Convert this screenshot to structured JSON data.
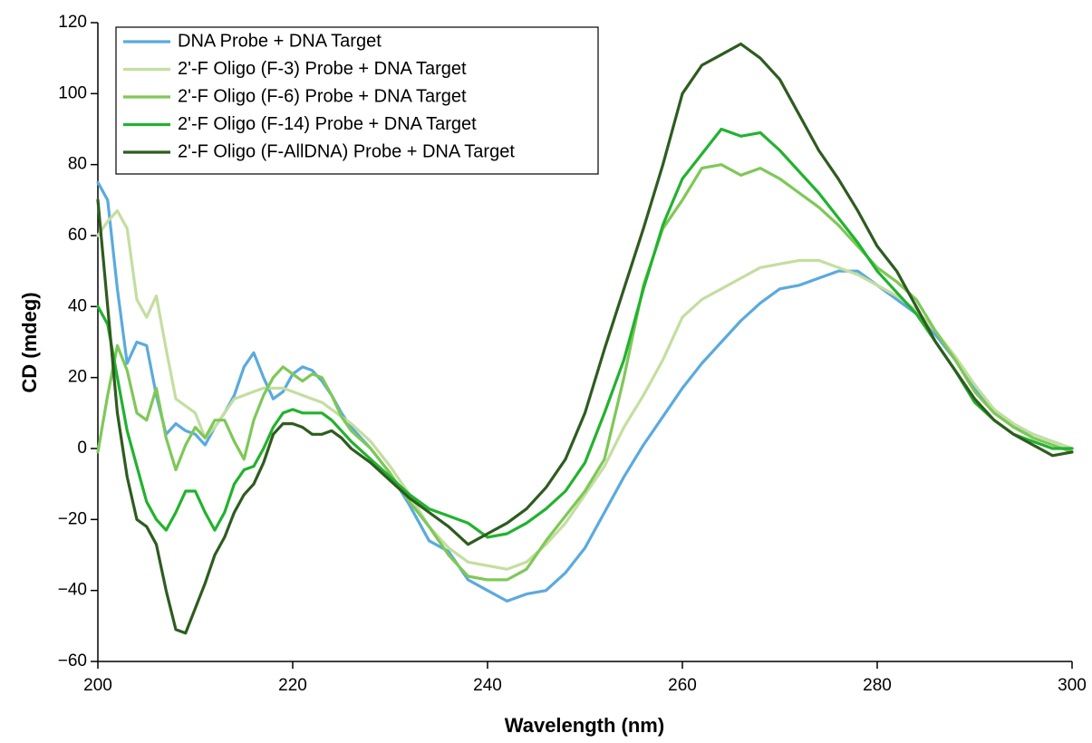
{
  "chart_data": {
    "type": "line",
    "xlabel": "Wavelength (nm)",
    "ylabel": "CD (mdeg)",
    "x": [
      200,
      201,
      202,
      203,
      204,
      205,
      206,
      207,
      208,
      209,
      210,
      211,
      212,
      213,
      214,
      215,
      216,
      217,
      218,
      219,
      220,
      221,
      222,
      223,
      224,
      225,
      226,
      228,
      230,
      232,
      234,
      236,
      238,
      240,
      242,
      244,
      246,
      248,
      250,
      252,
      254,
      256,
      258,
      260,
      262,
      264,
      266,
      268,
      270,
      272,
      274,
      276,
      278,
      280,
      282,
      284,
      286,
      288,
      290,
      292,
      294,
      296,
      298,
      300
    ],
    "xlim": [
      200,
      300
    ],
    "xticks": [
      200,
      220,
      240,
      260,
      280,
      300
    ],
    "ylim": [
      -60,
      120
    ],
    "yticks": [
      {
        "value": -60,
        "label": "−60"
      },
      {
        "value": -40,
        "label": "−40"
      },
      {
        "value": -20,
        "label": "−20"
      },
      0,
      20,
      40,
      60,
      80,
      100,
      120
    ],
    "legend": "upper left",
    "series": [
      {
        "name": "DNA Probe + DNA Target",
        "color": "#5aaade",
        "values": [
          75,
          70,
          45,
          24,
          30,
          29,
          15,
          4,
          7,
          5,
          4,
          1,
          6,
          10,
          15,
          23,
          27,
          20,
          14,
          16,
          21,
          23,
          22,
          19,
          15,
          10,
          6,
          0,
          -7,
          -16,
          -26,
          -29,
          -37,
          -40,
          -43,
          -41,
          -40,
          -35,
          -28,
          -18,
          -8,
          1,
          9,
          17,
          24,
          30,
          36,
          41,
          45,
          46,
          48,
          50,
          50,
          46,
          42,
          38,
          32,
          25,
          17,
          11,
          6,
          4,
          2,
          0
        ]
      },
      {
        "name": "2'-F Oligo (F-3) Probe + DNA Target",
        "color": "#c4dea0",
        "values": [
          60,
          64,
          67,
          62,
          42,
          37,
          43,
          28,
          14,
          12,
          10,
          3,
          6,
          10,
          14,
          15,
          16,
          17,
          17,
          17,
          16,
          15,
          14,
          13,
          11,
          9,
          7,
          2,
          -5,
          -13,
          -22,
          -28,
          -32,
          -33,
          -34,
          -32,
          -27,
          -21,
          -13,
          -5,
          6,
          15,
          25,
          37,
          42,
          45,
          48,
          51,
          52,
          53,
          53,
          51,
          49,
          46,
          43,
          39,
          33,
          26,
          18,
          11,
          7,
          4,
          2,
          0
        ]
      },
      {
        "name": "2'-F Oligo (F-6) Probe + DNA Target",
        "color": "#7ec857",
        "values": [
          -1,
          15,
          29,
          22,
          10,
          8,
          17,
          3,
          -6,
          1,
          6,
          3,
          8,
          8,
          2,
          -3,
          8,
          15,
          20,
          23,
          21,
          19,
          21,
          20,
          15,
          9,
          5,
          0,
          -7,
          -15,
          -22,
          -30,
          -36,
          -37,
          -37,
          -34,
          -26,
          -19,
          -12,
          -3,
          20,
          46,
          62,
          70,
          79,
          80,
          77,
          79,
          76,
          72,
          68,
          63,
          57,
          51,
          47,
          42,
          33,
          25,
          16,
          10,
          6,
          3,
          1,
          -1
        ]
      },
      {
        "name": "2'-F Oligo (F-14) Probe + DNA Target",
        "color": "#22b22e",
        "values": [
          40,
          35,
          20,
          5,
          -5,
          -15,
          -20,
          -23,
          -18,
          -12,
          -12,
          -18,
          -23,
          -18,
          -10,
          -6,
          -5,
          0,
          6,
          10,
          11,
          10,
          10,
          10,
          8,
          5,
          2,
          -3,
          -8,
          -13,
          -17,
          -19,
          -21,
          -25,
          -24,
          -21,
          -17,
          -12,
          -4,
          10,
          25,
          45,
          63,
          76,
          83,
          90,
          88,
          89,
          84,
          78,
          72,
          65,
          58,
          50,
          44,
          38,
          30,
          22,
          13,
          8,
          4,
          2,
          0,
          0
        ]
      },
      {
        "name": "2'-F Oligo (F-AllDNA) Probe + DNA Target",
        "color": "#2e5c1f",
        "values": [
          70,
          40,
          10,
          -8,
          -20,
          -22,
          -27,
          -40,
          -51,
          -52,
          -45,
          -38,
          -30,
          -25,
          -18,
          -13,
          -10,
          -4,
          4,
          7,
          7,
          6,
          4,
          4,
          5,
          3,
          0,
          -4,
          -9,
          -14,
          -18,
          -22,
          -27,
          -24,
          -21,
          -17,
          -11,
          -3,
          10,
          28,
          45,
          62,
          80,
          100,
          108,
          111,
          114,
          110,
          104,
          94,
          84,
          76,
          67,
          57,
          50,
          40,
          30,
          22,
          14,
          8,
          4,
          1,
          -2,
          -1
        ]
      }
    ]
  }
}
